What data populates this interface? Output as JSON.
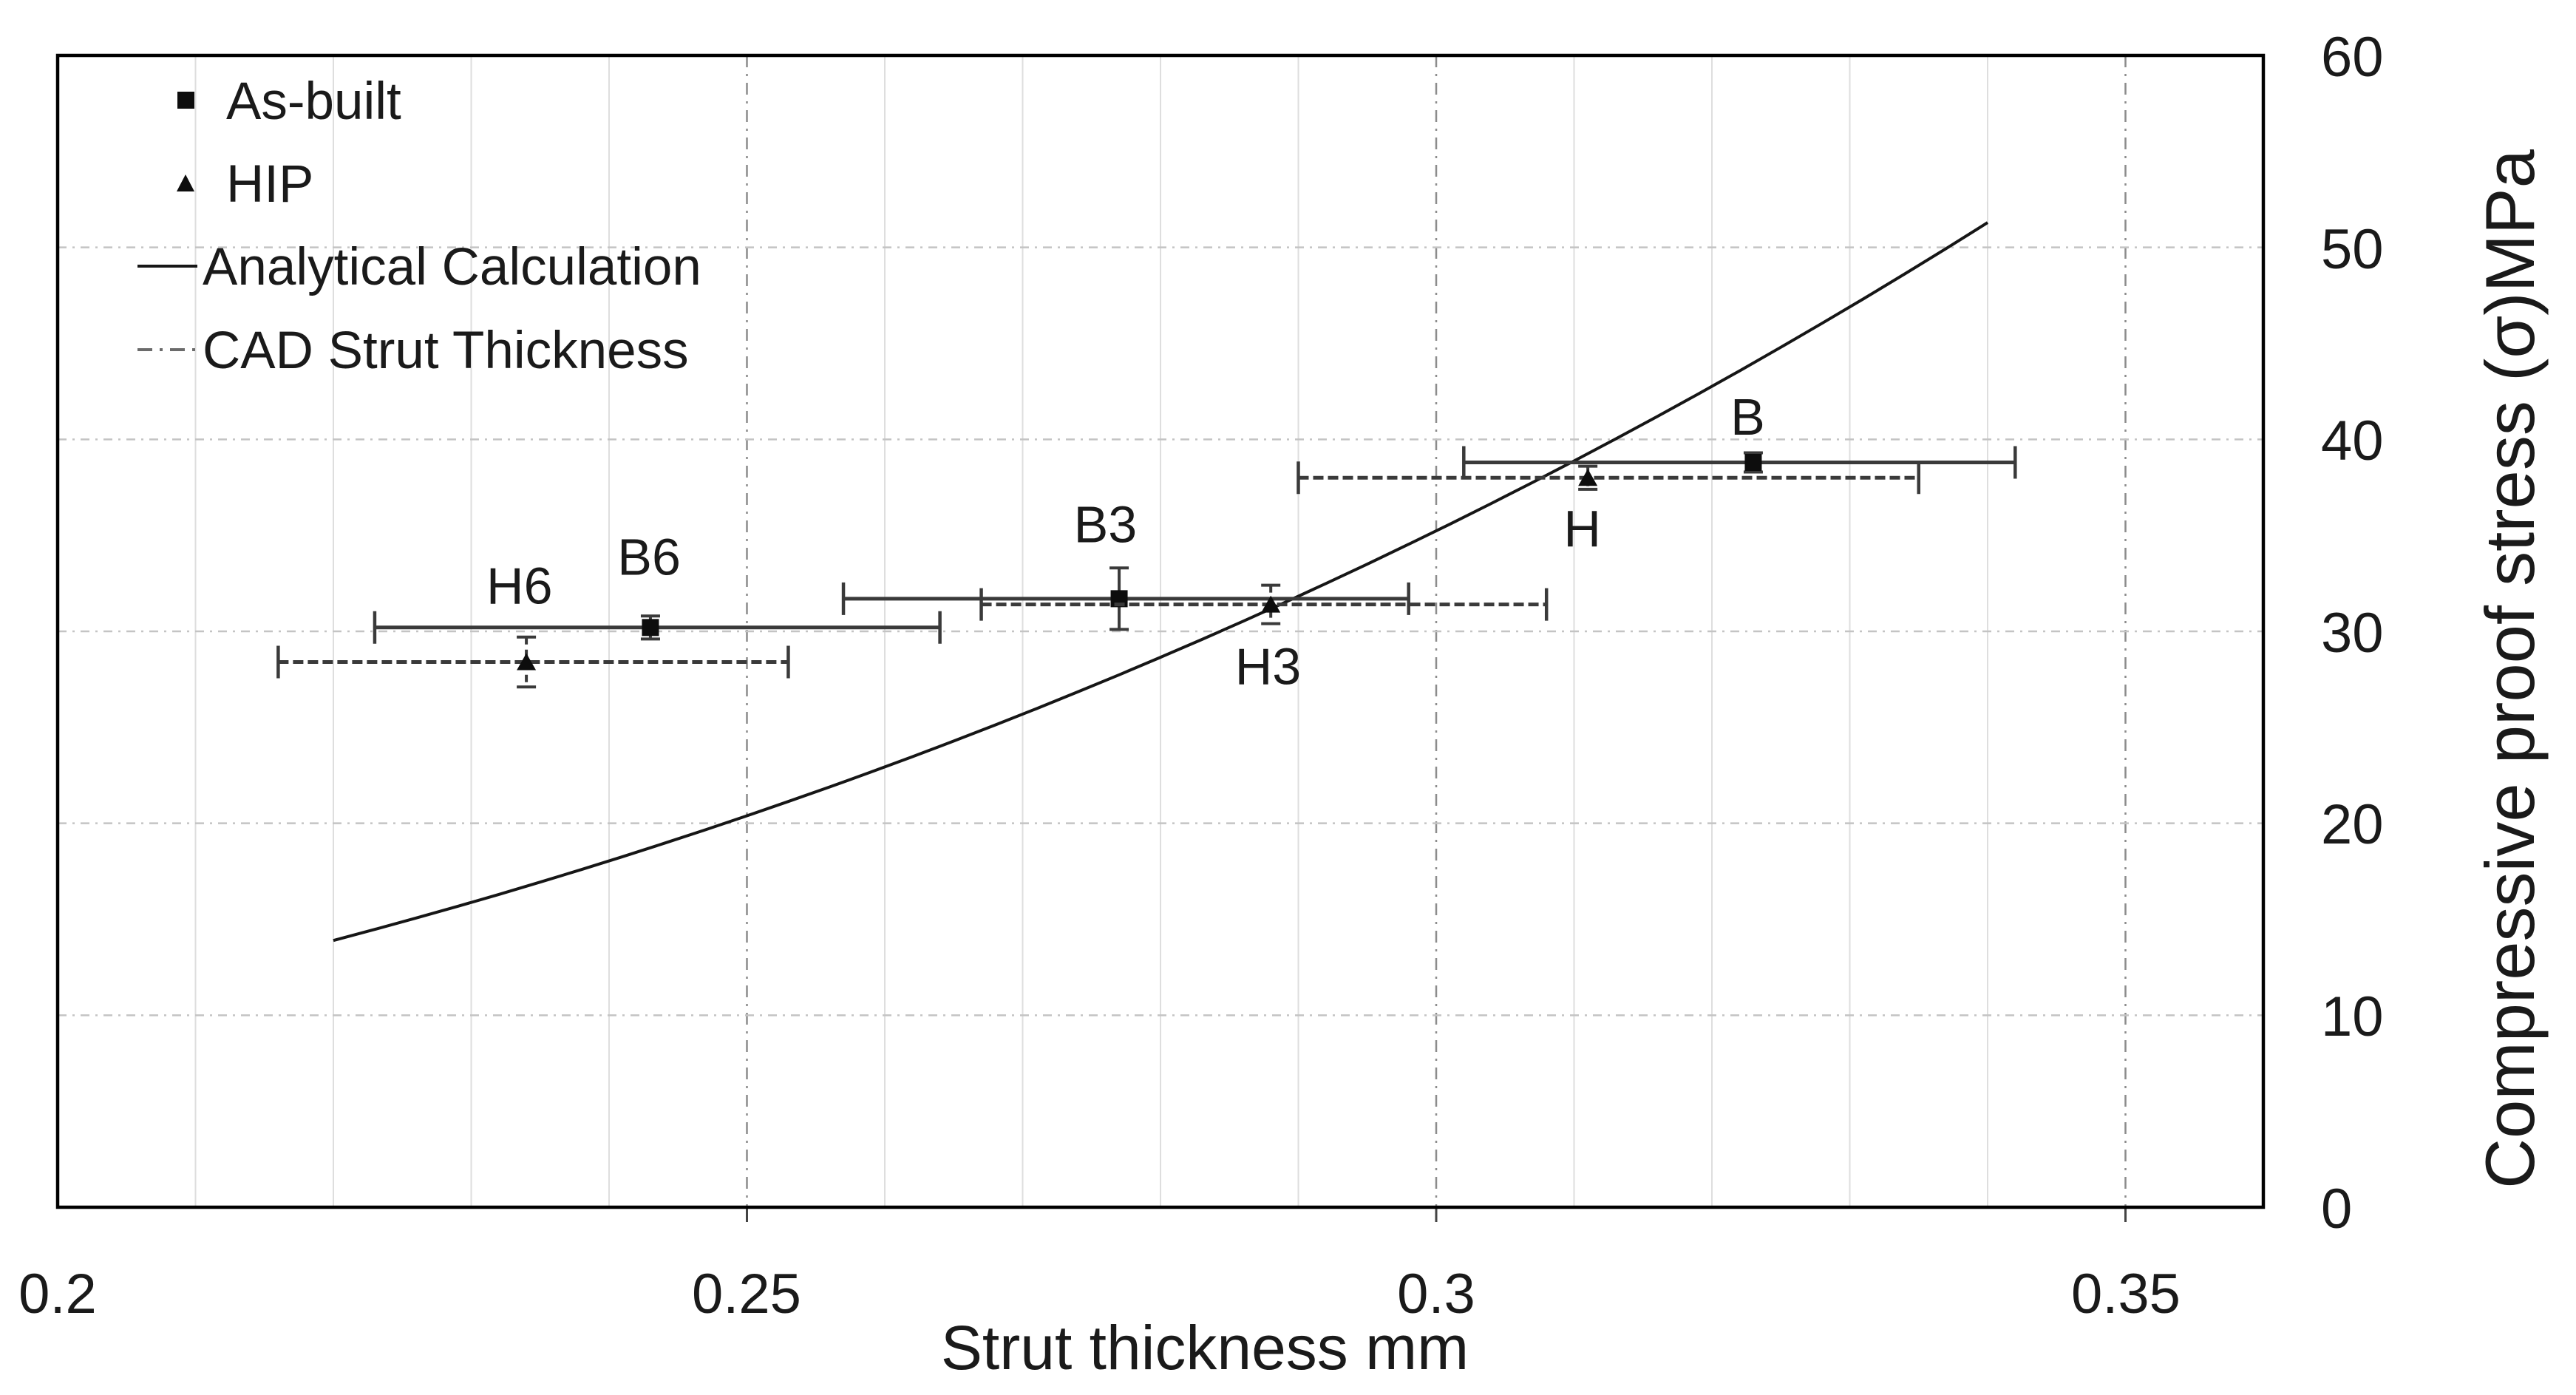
{
  "chart_data": {
    "type": "scatter",
    "title": "",
    "xlabel": "Strut thickness mm",
    "ylabel": "Compressive proof stress  (σ)MPa",
    "xlim": [
      0.2,
      0.36
    ],
    "ylim": [
      0,
      60
    ],
    "x_ticks": [
      0.2,
      0.25,
      0.3,
      0.35
    ],
    "x_tick_labels": [
      "0.2",
      "0.25",
      "0.3",
      "0.35"
    ],
    "y_ticks": [
      0,
      10,
      20,
      30,
      40,
      50,
      60
    ],
    "y_tick_labels": [
      "0",
      "10",
      "20",
      "30",
      "40",
      "50",
      "60"
    ],
    "x_minor_grid_step": 0.01,
    "grid": "on",
    "legend_position": "top-left-inside",
    "legend": [
      {
        "label": "As-built",
        "symbol": "square-marker"
      },
      {
        "label": "HIP",
        "symbol": "triangle-marker"
      },
      {
        "label": "Analytical Calculation",
        "symbol": "solid-line"
      },
      {
        "label": "CAD Strut Thickness",
        "symbol": "dash-dot-line"
      }
    ],
    "series": [
      {
        "name": "As-built",
        "marker": "square",
        "bar_style": "solid",
        "err_style": "solid",
        "points": [
          {
            "label": "B6",
            "x": 0.243,
            "y": 30.2,
            "y_err": 0.6,
            "x_bar": [
              0.223,
              0.264
            ],
            "label_pos": {
              "x": 0.2429,
              "y": 33.9
            }
          },
          {
            "label": "B3",
            "x": 0.277,
            "y": 31.7,
            "y_err": 1.6,
            "x_bar": [
              0.257,
              0.298
            ],
            "label_pos": {
              "x": 0.276,
              "y": 35.6
            }
          },
          {
            "label": "B",
            "x": 0.323,
            "y": 38.8,
            "y_err": 0.5,
            "x_bar": [
              0.302,
              0.342
            ],
            "label_pos": {
              "x": 0.3226,
              "y": 41.2
            }
          }
        ]
      },
      {
        "name": "HIP",
        "marker": "triangle",
        "bar_style": "dashed",
        "err_style": "dashed",
        "points": [
          {
            "label": "H6",
            "x": 0.234,
            "y": 28.4,
            "y_err": 1.3,
            "x_bar": [
              0.216,
              0.253
            ],
            "label_pos": {
              "x": 0.2335,
              "y": 32.4
            }
          },
          {
            "label": "H3",
            "x": 0.288,
            "y": 31.4,
            "y_err": 1.0,
            "x_bar": [
              0.267,
              0.308
            ],
            "label_pos": {
              "x": 0.2878,
              "y": 28.2
            }
          },
          {
            "label": "H",
            "x": 0.311,
            "y": 38.0,
            "y_err": 0.6,
            "x_bar": [
              0.29,
              0.335
            ],
            "label_pos": {
              "x": 0.3106,
              "y": 35.4
            }
          }
        ]
      }
    ],
    "analytical_curve": {
      "name": "Analytical Calculation",
      "x_start": 0.22,
      "x_end": 0.34,
      "coefficient": 1305,
      "exponent": 3,
      "y_start": 13.9,
      "y_end": 51.3
    },
    "style": {
      "border_color": "#000000",
      "minor_grid_color": "#dedede",
      "major_grid_color": "#8c8c8c",
      "h_grid_color": "#c4c4c4",
      "errorbar_color": "#3a3a3a",
      "marker_color": "#0d0d0d",
      "curve_color": "#161616"
    }
  }
}
